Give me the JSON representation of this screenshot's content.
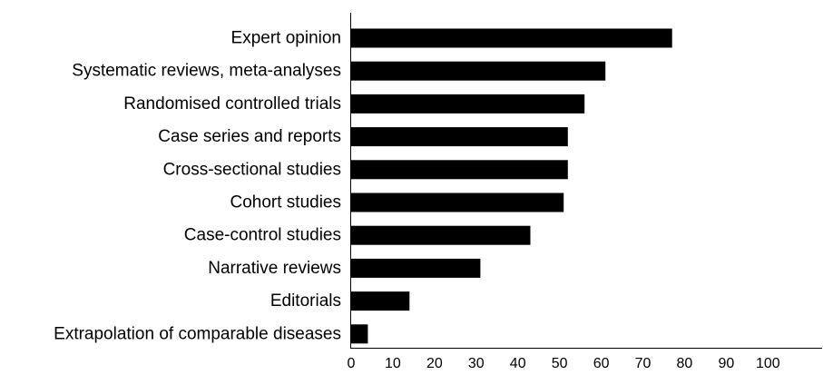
{
  "chart_data": {
    "type": "bar",
    "orientation": "horizontal",
    "categories": [
      "Expert opinion",
      "Systematic reviews, meta-analyses",
      "Randomised controlled trials",
      "Case series and reports",
      "Cross-sectional studies",
      "Cohort studies",
      "Case-control studies",
      "Narrative reviews",
      "Editorials",
      "Extrapolation of comparable diseases"
    ],
    "values": [
      77,
      61,
      56,
      52,
      52,
      51,
      43,
      31,
      14,
      4
    ],
    "title": "",
    "xlabel": "",
    "ylabel": "",
    "xlim": [
      0,
      113
    ],
    "xticks": [
      0,
      10,
      20,
      30,
      40,
      50,
      60,
      70,
      80,
      90,
      100
    ],
    "grid": false,
    "bar_color": "#000000"
  }
}
